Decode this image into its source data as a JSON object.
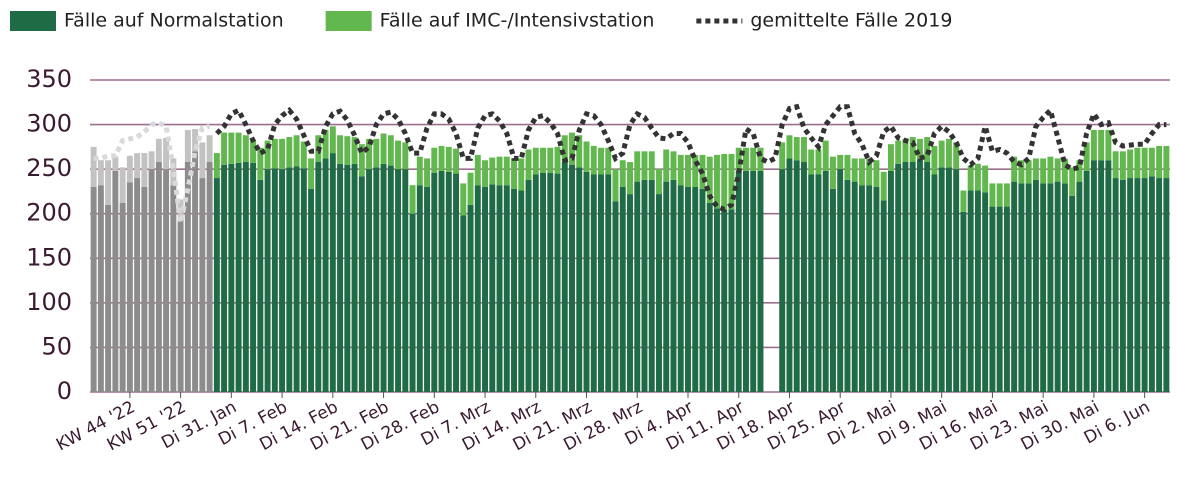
{
  "chart_data": [
    {
      "type": "bar",
      "categories": [
        null,
        null,
        null,
        null,
        null,
        "KW 44 '22",
        null,
        null,
        null,
        null,
        null,
        null,
        "KW 51 '22",
        null,
        null,
        null,
        null
      ],
      "series": [
        {
          "type": "bar",
          "color": "#8c8c8c",
          "values": [
            230,
            232,
            210,
            248,
            212,
            235,
            240,
            230,
            250,
            258,
            250,
            232,
            196,
            258,
            270,
            240,
            258
          ]
        },
        {
          "type": "bar",
          "color": "#c2c2c2",
          "values": [
            45,
            28,
            50,
            16,
            40,
            30,
            28,
            38,
            20,
            26,
            35,
            30,
            20,
            36,
            25,
            40,
            30
          ]
        },
        {
          "type": "line",
          "color": "#d9d9d9",
          "values": [
            262,
            262,
            265,
            265,
            282,
            284,
            286,
            292,
            300,
            302,
            298,
            250,
            190,
            228,
            270,
            296,
            298
          ]
        }
      ],
      "ylim": [
        0,
        350
      ],
      "yticks": [
        0,
        50,
        100,
        150,
        200,
        250,
        300,
        350
      ],
      "grid": true
    },
    {
      "type": "bar",
      "categories": [
        null,
        null,
        "Di 31. Jan",
        null,
        null,
        null,
        null,
        null,
        null,
        "Di 7. Feb",
        null,
        null,
        null,
        null,
        null,
        null,
        "Di 14. Feb",
        null,
        null,
        null,
        null,
        null,
        null,
        "Di 21. Feb",
        null,
        null,
        null,
        null,
        null,
        null,
        "Di 28. Feb",
        null,
        null,
        null,
        null,
        null,
        null,
        "Di 7. Mrz",
        null,
        null,
        null,
        null,
        null,
        null,
        "Di 14. Mrz",
        null,
        null,
        null,
        null,
        null,
        null,
        "Di 21. Mrz",
        null,
        null,
        null,
        null,
        null,
        null,
        "Di 28. Mrz",
        null,
        null,
        null,
        null,
        null,
        null,
        "Di 4. Apr",
        null,
        null,
        null,
        null,
        null,
        null,
        "Di 11. Apr",
        null,
        null,
        null,
        null,
        null,
        null,
        "Di 18. Apr",
        null,
        null,
        null,
        null,
        null,
        null,
        "Di 25. Apr",
        null,
        null,
        null,
        null,
        null,
        null,
        "Di 2. Mai",
        null,
        null,
        null,
        null,
        null,
        null,
        "Di 9. Mai",
        null,
        null,
        null,
        null,
        null,
        null,
        "Di 16. Mai",
        null,
        null,
        null,
        null,
        null,
        null,
        "Di 23. Mai",
        null,
        null,
        null,
        null,
        null,
        null,
        "Di 30. Mai",
        null,
        null,
        null,
        null,
        null,
        null,
        "Di 6. Jun",
        null,
        null,
        null
      ],
      "series": [
        {
          "name": "Fälle auf Normalstation",
          "type": "bar",
          "color": "#1e6b46",
          "values": [
            240,
            255,
            256,
            257,
            258,
            257,
            238,
            250,
            251,
            250,
            252,
            253,
            251,
            228,
            258,
            262,
            268,
            256,
            255,
            256,
            242,
            250,
            252,
            256,
            254,
            250,
            250,
            200,
            232,
            230,
            246,
            248,
            247,
            245,
            198,
            210,
            232,
            230,
            233,
            232,
            232,
            228,
            226,
            238,
            244,
            246,
            246,
            245,
            258,
            255,
            252,
            247,
            244,
            244,
            244,
            214,
            230,
            222,
            236,
            238,
            238,
            222,
            236,
            238,
            232,
            230,
            230,
            228,
            212,
            206,
            205,
            205,
            248,
            248,
            248,
            248,
            null,
            null,
            250,
            262,
            260,
            258,
            244,
            244,
            248,
            228,
            250,
            238,
            236,
            232,
            232,
            230,
            215,
            248,
            256,
            258,
            258,
            260,
            258,
            244,
            252,
            252,
            250,
            202,
            226,
            226,
            224,
            208,
            208,
            208,
            236,
            234,
            234,
            238,
            234,
            234,
            236,
            234,
            220,
            236,
            248,
            260,
            260,
            260,
            240,
            238,
            240,
            240,
            240,
            242,
            240,
            240
          ]
        },
        {
          "name": "Fälle auf IMC-/Intensivstation",
          "type": "bar",
          "color": "#62b84e",
          "values": [
            28,
            36,
            35,
            34,
            30,
            26,
            36,
            32,
            33,
            34,
            34,
            35,
            30,
            34,
            30,
            32,
            30,
            32,
            32,
            30,
            36,
            34,
            32,
            34,
            34,
            32,
            30,
            32,
            32,
            32,
            28,
            28,
            28,
            28,
            36,
            36,
            34,
            30,
            30,
            32,
            32,
            34,
            36,
            34,
            30,
            28,
            28,
            30,
            30,
            36,
            36,
            34,
            32,
            30,
            30,
            36,
            30,
            36,
            34,
            32,
            32,
            28,
            36,
            32,
            34,
            36,
            36,
            38,
            52,
            60,
            62,
            62,
            26,
            26,
            26,
            26,
            null,
            null,
            30,
            26,
            26,
            28,
            28,
            28,
            34,
            36,
            16,
            28,
            26,
            30,
            30,
            30,
            32,
            30,
            26,
            26,
            28,
            24,
            28,
            32,
            30,
            32,
            30,
            24,
            28,
            30,
            30,
            26,
            26,
            26,
            28,
            26,
            26,
            24,
            28,
            30,
            26,
            28,
            32,
            24,
            32,
            34,
            34,
            34,
            30,
            32,
            32,
            34,
            34,
            32,
            36,
            36
          ]
        },
        {
          "name": "gemittelte Fälle 2019",
          "type": "line",
          "color": "#333333",
          "values": [
            290,
            298,
            312,
            316,
            300,
            282,
            268,
            272,
            300,
            310,
            316,
            306,
            288,
            270,
            270,
            298,
            312,
            315,
            305,
            288,
            268,
            275,
            300,
            312,
            314,
            306,
            290,
            268,
            268,
            296,
            312,
            312,
            306,
            290,
            262,
            262,
            296,
            310,
            312,
            304,
            290,
            262,
            262,
            294,
            308,
            310,
            302,
            290,
            260,
            262,
            294,
            312,
            310,
            300,
            282,
            262,
            268,
            300,
            312,
            308,
            296,
            285,
            284,
            290,
            290,
            280,
            260,
            245,
            220,
            208,
            205,
            210,
            245,
            295,
            290,
            262,
            258,
            262,
            300,
            318,
            320,
            296,
            285,
            275,
            300,
            310,
            320,
            320,
            290,
            278,
            258,
            265,
            292,
            298,
            285,
            282,
            280,
            262,
            265,
            290,
            298,
            292,
            280,
            262,
            255,
            262,
            298,
            270,
            272,
            268,
            258,
            255,
            262,
            298,
            308,
            316,
            286,
            255,
            250,
            252,
            290,
            312,
            300,
            302,
            280,
            276,
            277,
            278,
            278,
            290,
            300,
            300
          ]
        }
      ],
      "ylim": [
        0,
        350
      ]
    }
  ]
}
